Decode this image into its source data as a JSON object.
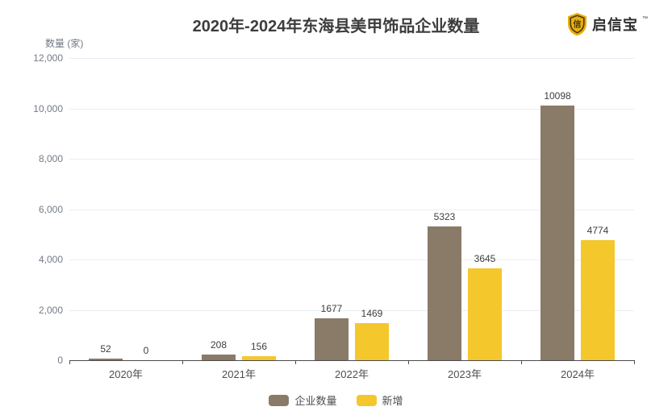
{
  "header": {
    "title": "2020年-2024年东海县美甲饰品企业数量",
    "logo_text": "启信宝",
    "logo_trademark": "™"
  },
  "colors": {
    "series_enterprise": "#8a7a68",
    "series_new": "#f4c72d",
    "grid_line": "#e8eef5",
    "axis_line": "#4c4c4c",
    "title_text": "#3d3d3d",
    "tick_text": "#747a87",
    "logo_gold": "#e8ae10"
  },
  "chart_data": {
    "type": "bar",
    "title": "2020年-2024年东海县美甲饰品企业数量",
    "ylabel": "数量 (家)",
    "xlabel": "",
    "categories": [
      "2020年",
      "2021年",
      "2022年",
      "2023年",
      "2024年"
    ],
    "series": [
      {
        "name": "企业数量",
        "color": "#8a7a68",
        "values": [
          52,
          208,
          1677,
          5323,
          10098
        ]
      },
      {
        "name": "新增",
        "color": "#f4c72d",
        "values": [
          0,
          156,
          1469,
          3645,
          4774
        ]
      }
    ],
    "ylim": [
      0,
      12000
    ],
    "ytick_step": 2000,
    "grid": true,
    "legend_position": "bottom",
    "value_labels": true
  }
}
